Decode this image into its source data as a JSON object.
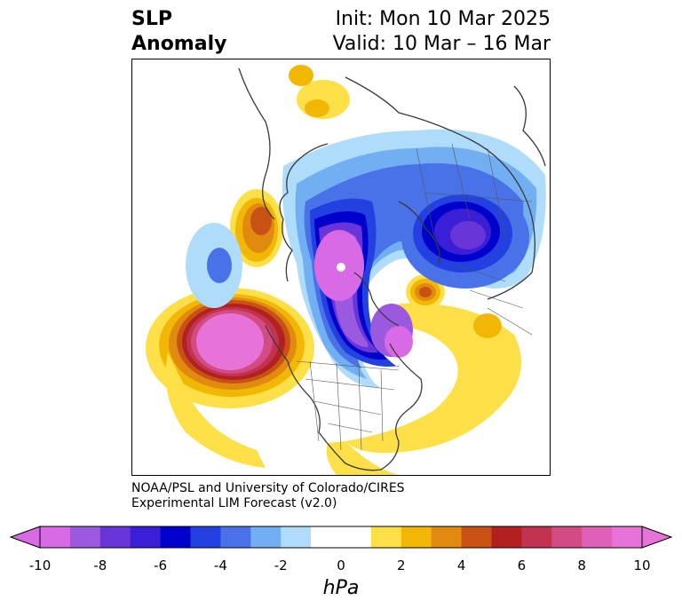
{
  "title": {
    "left_line1": "SLP",
    "left_line2": "Anomaly",
    "right_line1": "Init: Mon 10 Mar 2025",
    "right_line2": "Valid: 10 Mar – 16 Mar"
  },
  "credit": {
    "line1": "NOAA/PSL and University of Colorado/CIRES",
    "line2": "Experimental LIM Forecast (v2.0)"
  },
  "colorbar": {
    "unit": "hPa",
    "tick_labels": [
      "-10",
      "-8",
      "-6",
      "-4",
      "-2",
      "0",
      "2",
      "4",
      "6",
      "8",
      "10"
    ],
    "colors": [
      "#d86ae6",
      "#9b59e0",
      "#6a35d8",
      "#3a1fd6",
      "#0000cc",
      "#2340e0",
      "#4a72e8",
      "#72aef2",
      "#aedcfa",
      "#ffffff",
      "#ffffff",
      "#fde047",
      "#f2b705",
      "#e08b10",
      "#c75214",
      "#b32020",
      "#c2334f",
      "#d24c83",
      "#e060b8",
      "#e873d8"
    ],
    "extend": "both"
  },
  "map": {
    "projection": "north-polar-stereographic",
    "field": "SLP anomaly",
    "colors": {
      "pos1": "#fde047",
      "pos2": "#f2b705",
      "pos3": "#e08b10",
      "pos4": "#c75214",
      "pos5": "#b32020",
      "pos6": "#c2334f",
      "pos7": "#d24c83",
      "pos8": "#e873d8",
      "neg1": "#aedcfa",
      "neg2": "#72aef2",
      "neg3": "#4a72e8",
      "neg4": "#2340e0",
      "neg5": "#0000cc",
      "neg6": "#3a1fd6",
      "neg7": "#6a35d8",
      "neg8": "#9b59e0",
      "neg9": "#d86ae6",
      "coast": "#3a3a3a"
    }
  }
}
